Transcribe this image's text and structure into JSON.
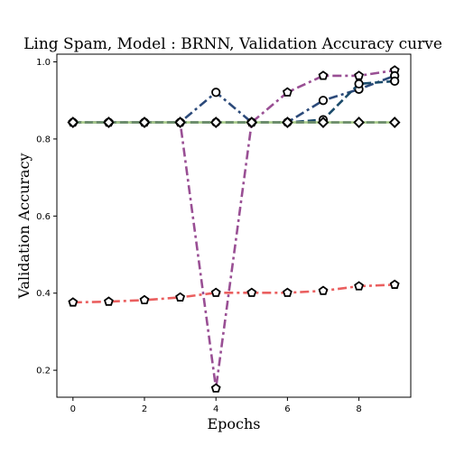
{
  "chart_data": {
    "type": "line",
    "title": "Ling Spam, Model : BRNN, Validation Accuracy curve",
    "xlabel": "Epochs",
    "ylabel": "Validation Accuracy",
    "x": [
      0,
      1,
      2,
      3,
      4,
      5,
      6,
      7,
      8,
      9
    ],
    "xlim": [
      -0.45,
      9.45
    ],
    "ylim": [
      0.13,
      1.02
    ],
    "xticks": [
      0,
      2,
      4,
      6,
      8
    ],
    "yticks": [
      0.2,
      0.4,
      0.6,
      0.8,
      1.0
    ],
    "xtick_labels": [
      "0",
      "2",
      "4",
      "6",
      "8"
    ],
    "ytick_labels": [
      "0.2",
      "0.4",
      "0.6",
      "0.8",
      "1.0"
    ],
    "grid": false,
    "legend": "none",
    "series": [
      {
        "color": "#ea5f5f",
        "linestyle": "dashdot",
        "marker": "pentagon",
        "values": [
          0.376,
          0.378,
          0.382,
          0.389,
          0.401,
          0.401,
          0.401,
          0.406,
          0.418,
          0.422
        ]
      },
      {
        "color": "#994f94",
        "linestyle": "dashdot",
        "marker": "pentagon",
        "values": [
          0.843,
          0.843,
          0.843,
          0.843,
          0.153,
          0.843,
          0.921,
          0.964,
          0.964,
          0.978
        ]
      },
      {
        "color": "#2c4a7a",
        "linestyle": "dashdot",
        "marker": "circle",
        "values": [
          0.843,
          0.843,
          0.843,
          0.843,
          0.921,
          0.843,
          0.843,
          0.9,
          0.929,
          0.964
        ]
      },
      {
        "color": "#1a4a6a",
        "linestyle": "dashed",
        "marker": "circle",
        "values": [
          0.843,
          0.843,
          0.843,
          0.843,
          0.843,
          0.843,
          0.843,
          0.85,
          0.943,
          0.95
        ]
      },
      {
        "color": "#a8cc8a",
        "linestyle": "solid",
        "marker": "diamond",
        "values": [
          0.843,
          0.843,
          0.843,
          0.843,
          0.843,
          0.843,
          0.843,
          0.843,
          0.843,
          0.843
        ]
      },
      {
        "color": "#6a8a6a",
        "linestyle": "dashed",
        "marker": "diamond",
        "values": [
          0.843,
          0.843,
          0.843,
          0.843,
          0.843,
          0.843,
          0.843,
          0.843,
          0.843,
          0.843
        ]
      }
    ]
  }
}
